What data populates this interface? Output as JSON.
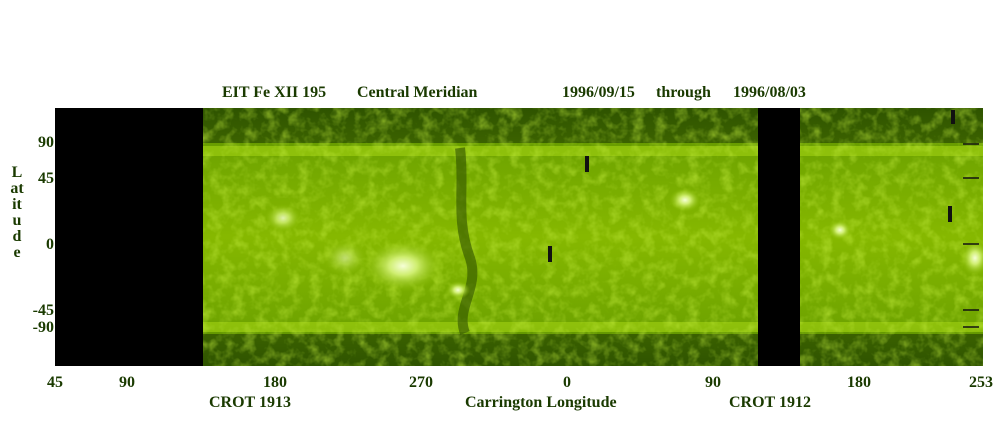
{
  "header": {
    "title": "EIT Fe XII 195",
    "mode": "Central Meridian",
    "start_date": "1996/09/15",
    "through": "through",
    "end_date": "1996/08/03"
  },
  "y_axis": {
    "label": "Latitude",
    "ticks": [
      "90",
      "45",
      "0",
      "-45",
      "-90"
    ]
  },
  "x_axis": {
    "title": "Carrington Longitude",
    "ticks": [
      "45",
      "90",
      "180",
      "270",
      "0",
      "90",
      "180",
      "253"
    ]
  },
  "rotations": {
    "left": "CROT 1913",
    "right": "CROT 1912"
  },
  "colors": {
    "disk_green": "#7fb000",
    "bright_green": "#e8ffb0",
    "dark_green": "#2f5200",
    "background": "#000000",
    "text": "#1a3a00"
  }
}
